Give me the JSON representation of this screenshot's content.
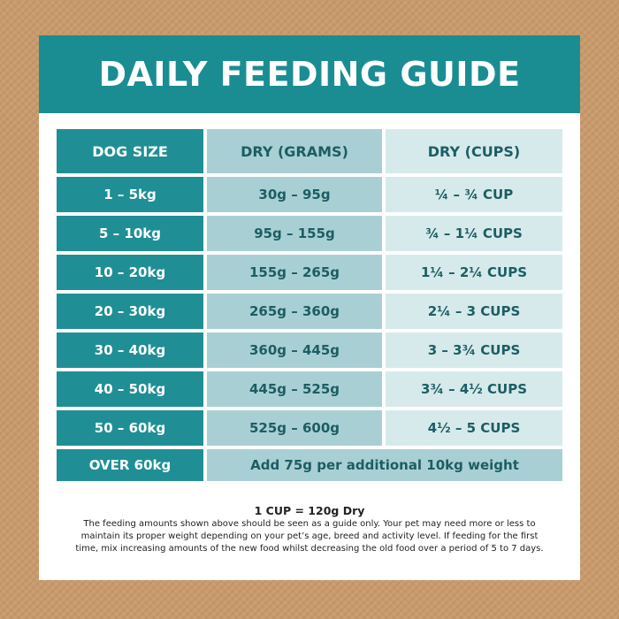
{
  "header": {
    "title": "DAILY FEEDING GUIDE"
  },
  "table": {
    "columns": [
      "DOG SIZE",
      "DRY (GRAMS)",
      "DRY (CUPS)"
    ],
    "rows": [
      [
        "1 – 5kg",
        "30g – 95g",
        "¼ – ¾ CUP"
      ],
      [
        "5 – 10kg",
        "95g – 155g",
        "¾ – 1¼ CUPS"
      ],
      [
        "10 – 20kg",
        "155g – 265g",
        "1¼ – 2¼ CUPS"
      ],
      [
        "20 – 30kg",
        "265g – 360g",
        "2¼ – 3 CUPS"
      ],
      [
        "30 – 40kg",
        "360g – 445g",
        "3 – 3¾ CUPS"
      ],
      [
        "40 – 50kg",
        "445g – 525g",
        "3¾ – 4½ CUPS"
      ],
      [
        "50 – 60kg",
        "525g – 600g",
        "4½ – 5 CUPS"
      ],
      [
        "OVER 60kg",
        "Add 75g per additional 10kg weight"
      ]
    ]
  },
  "footer": {
    "note_title": "1 CUP = 120g Dry",
    "note": "The feeding amounts shown above should be seen as a guide only. Your pet may need more or less to maintain its proper weight depending on your pet’s age, breed and activity level. If feeding for the first time, mix increasing amounts of the new food whilst decreasing the old food over a period of 5 to 7 days."
  }
}
